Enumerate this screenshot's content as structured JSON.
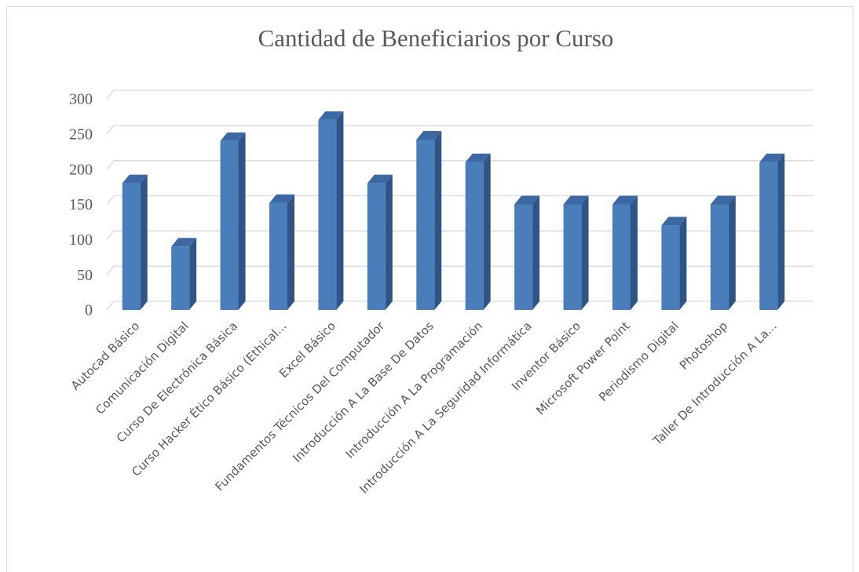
{
  "chart_data": {
    "type": "bar3d",
    "title": "Cantidad de Beneficiarios por Curso",
    "categories": [
      "Autocad Básico",
      "Comunicación Digital",
      "Curso De Electrónica Básica",
      "Curso Hacker Ético Básico (Ethical...",
      "Excel Básico",
      "Fundamentos Técnicos Del Computador",
      "Introducción A La Base De Datos",
      "Introducción A La Programación",
      "Introducción A La Seguridad Informática",
      "Inventor Básico",
      "Microsoft Power Point",
      "Periodismo Digital",
      "Photoshop",
      "Taller De Introducción A La..."
    ],
    "values": [
      180,
      90,
      240,
      152,
      270,
      180,
      242,
      210,
      150,
      150,
      150,
      120,
      150,
      210
    ],
    "color": "#4a7ebb",
    "ylim": [
      0,
      300
    ],
    "yticks": [
      0,
      50,
      100,
      150,
      200,
      250,
      300
    ],
    "grid": true
  }
}
